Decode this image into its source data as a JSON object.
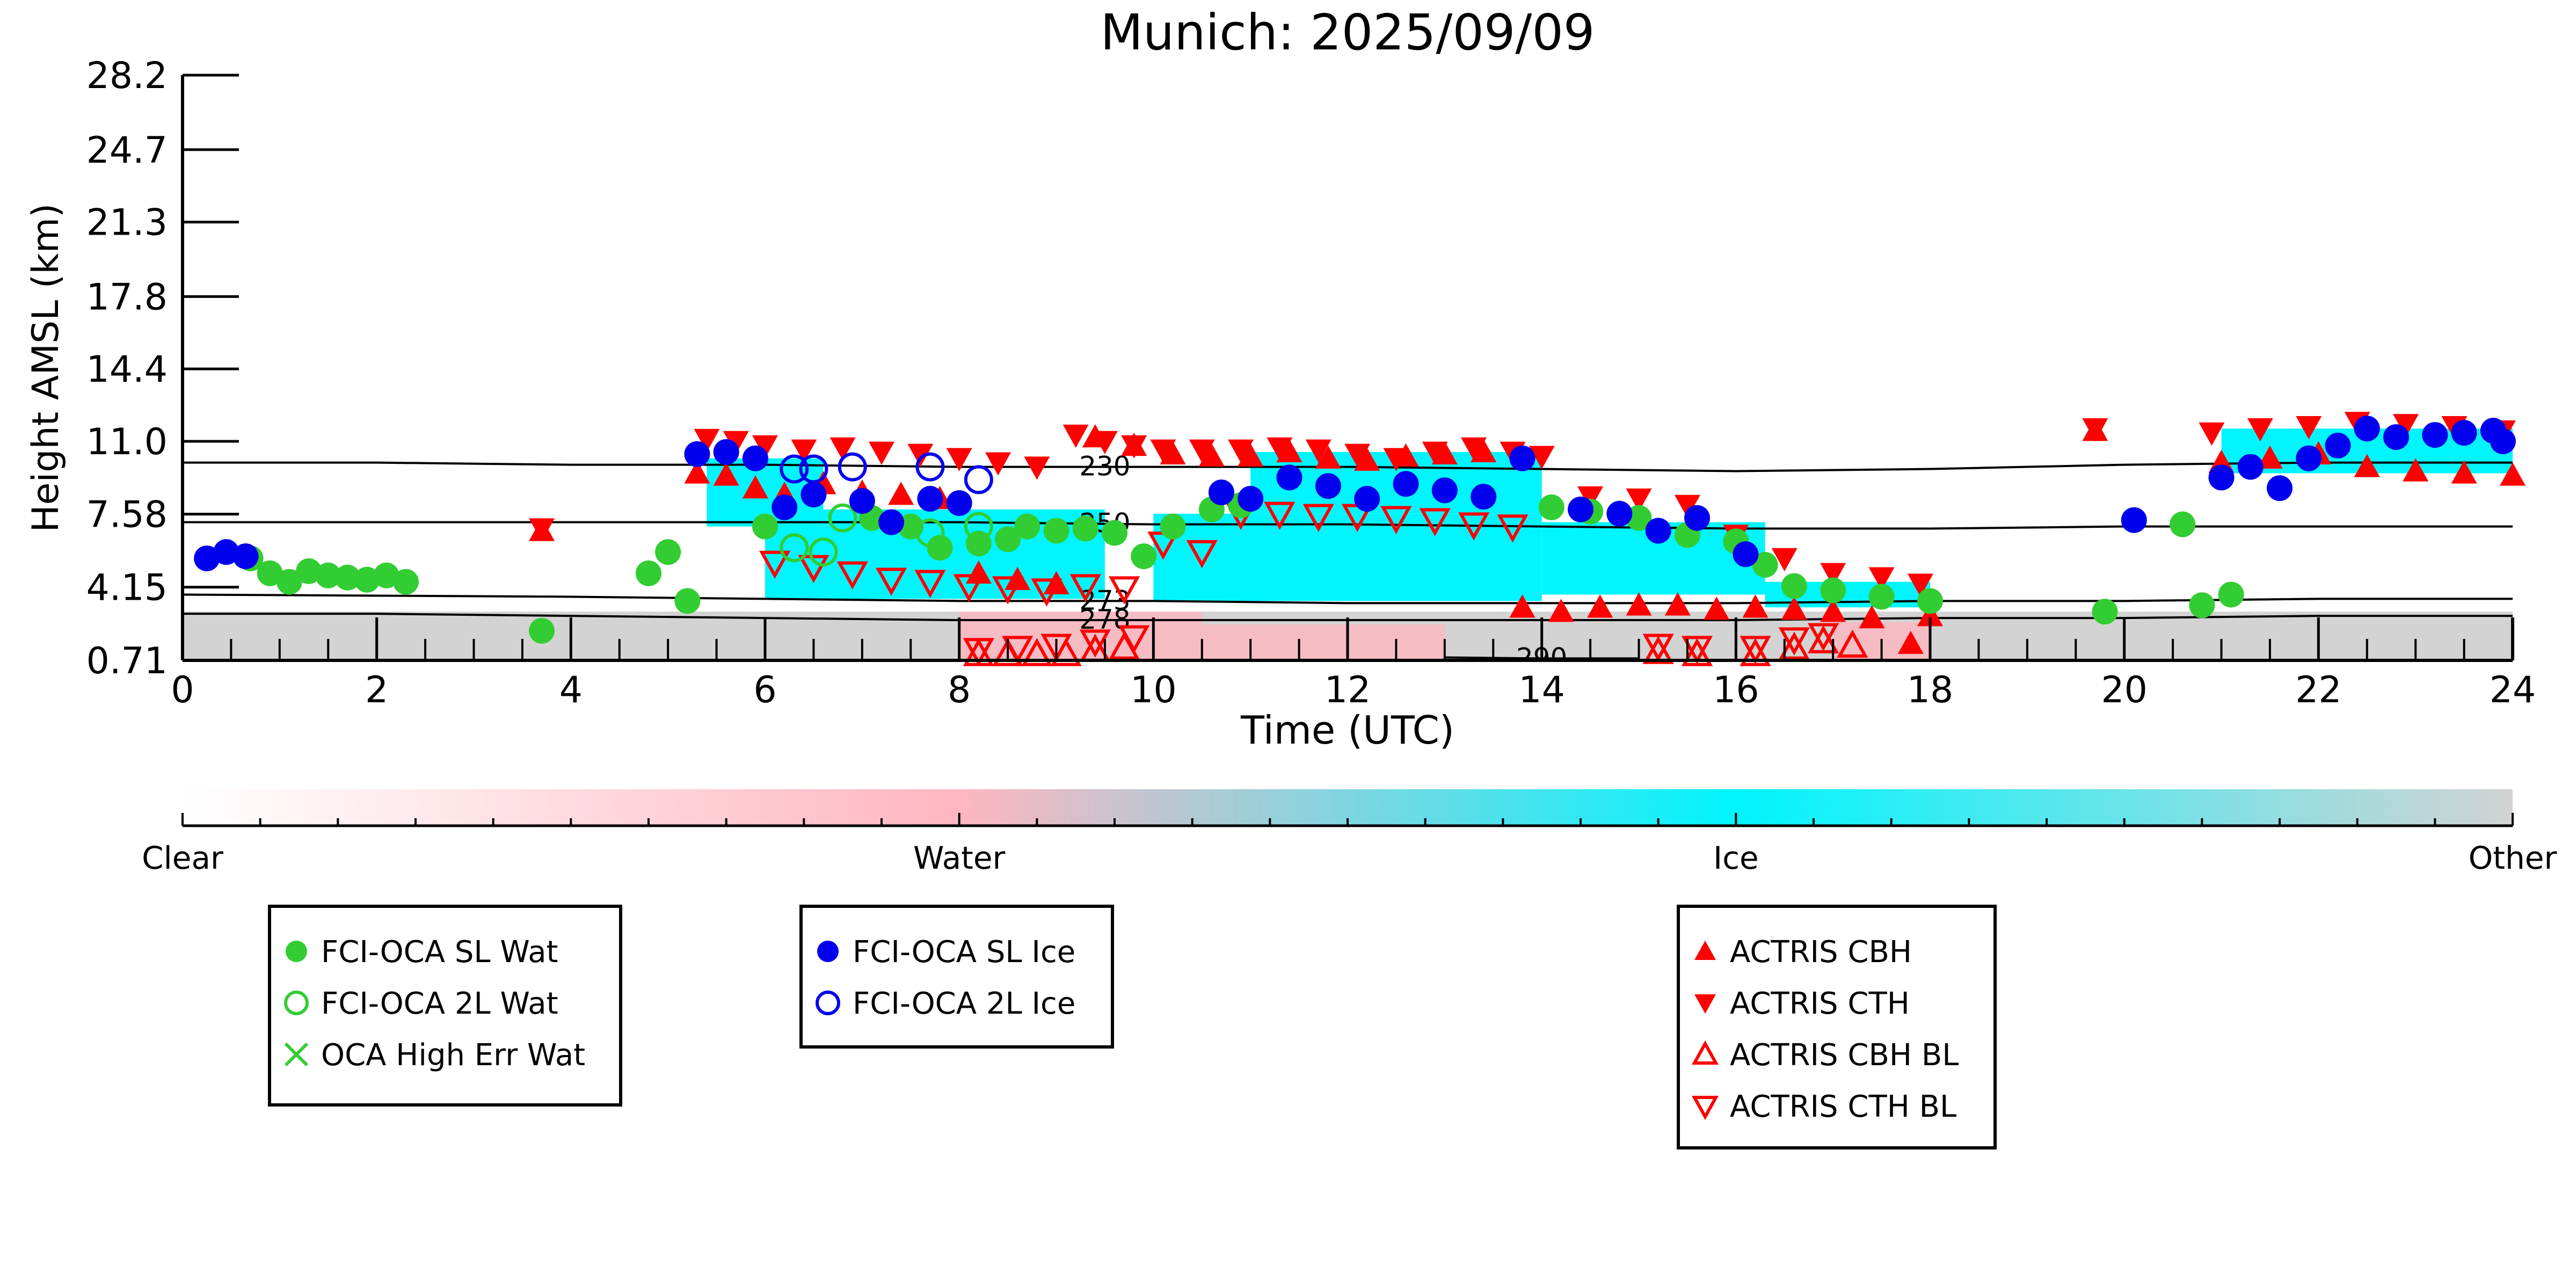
{
  "chart_data": {
    "type": "scatter",
    "title": "Munich: 2025/09/09",
    "xlabel": "Time (UTC)",
    "ylabel": "Height AMSL (km)",
    "xlim": [
      0,
      24
    ],
    "x_ticks": [
      "0",
      "2",
      "4",
      "6",
      "8",
      "10",
      "12",
      "14",
      "16",
      "18",
      "20",
      "22",
      "24"
    ],
    "y_ticks": [
      "0.71",
      "4.15",
      "7.58",
      "11.0",
      "14.4",
      "17.8",
      "21.3",
      "24.7",
      "28.2"
    ],
    "y_tick_values": [
      0.71,
      4.15,
      7.58,
      11.0,
      14.4,
      17.8,
      21.3,
      24.7,
      28.2
    ],
    "grid": false,
    "colorbar": {
      "labels": [
        "Clear",
        "Water",
        "Ice",
        "Other"
      ],
      "colors": [
        "#ffffff",
        "#ffb6c1",
        "#00f5ff",
        "#d3d3d3"
      ]
    },
    "isotherms": [
      {
        "label": "230",
        "x": [
          0,
          2,
          4,
          6,
          8,
          10,
          12,
          14,
          16,
          18,
          20,
          22,
          24
        ],
        "y": [
          10.0,
          10.0,
          9.9,
          9.9,
          9.8,
          9.8,
          9.8,
          9.7,
          9.6,
          9.7,
          9.9,
          10.0,
          10.0
        ]
      },
      {
        "label": "250",
        "x": [
          0,
          2,
          4,
          6,
          8,
          10,
          12,
          14,
          16,
          18,
          20,
          22,
          24
        ],
        "y": [
          7.2,
          7.2,
          7.2,
          7.2,
          7.2,
          7.1,
          7.1,
          7.0,
          6.9,
          6.9,
          7.0,
          7.0,
          7.0
        ]
      },
      {
        "label": "273",
        "x": [
          0,
          2,
          4,
          6,
          8,
          10,
          12,
          14,
          16,
          18,
          20,
          22,
          24
        ],
        "y": [
          3.8,
          3.75,
          3.7,
          3.6,
          3.5,
          3.5,
          3.4,
          3.4,
          3.4,
          3.5,
          3.5,
          3.6,
          3.6
        ]
      },
      {
        "label": "278",
        "x": [
          0,
          2,
          4,
          6,
          8,
          10,
          12,
          14,
          16,
          18,
          20,
          22,
          24
        ],
        "y": [
          2.9,
          2.9,
          2.8,
          2.7,
          2.6,
          2.6,
          2.6,
          2.6,
          2.6,
          2.7,
          2.7,
          2.8,
          2.8
        ]
      },
      {
        "label": "290",
        "x": [
          13,
          14,
          15
        ],
        "y": [
          0.85,
          0.8,
          0.8
        ]
      }
    ],
    "ice_regions": [
      {
        "x0": 5.4,
        "x1": 6.6,
        "y0": 7.0,
        "y1": 10.2
      },
      {
        "x0": 6.0,
        "x1": 9.5,
        "y0": 3.6,
        "y1": 7.8
      },
      {
        "x0": 10.0,
        "x1": 14.0,
        "y0": 3.5,
        "y1": 7.6
      },
      {
        "x0": 11.0,
        "x1": 14.0,
        "y0": 7.6,
        "y1": 10.5
      },
      {
        "x0": 14.0,
        "x1": 16.3,
        "y0": 3.8,
        "y1": 7.2
      },
      {
        "x0": 16.3,
        "x1": 18.0,
        "y0": 3.2,
        "y1": 4.4
      },
      {
        "x0": 21.0,
        "x1": 24.0,
        "y0": 9.5,
        "y1": 11.6
      }
    ],
    "water_regions": [
      {
        "x0": 8.0,
        "x1": 10.5,
        "y0": 0.71,
        "y1": 3.0
      },
      {
        "x0": 10.5,
        "x1": 13.0,
        "y0": 0.71,
        "y1": 2.4
      },
      {
        "x0": 17.0,
        "x1": 18.0,
        "y0": 0.71,
        "y1": 2.5
      }
    ],
    "other_band": {
      "y0": 0.71,
      "y1": 3.0
    },
    "series": [
      {
        "name": "FCI-OCA SL Wat",
        "marker": "circle-filled",
        "color": "#32cd32",
        "x": [
          0.7,
          0.9,
          1.1,
          1.3,
          1.5,
          1.7,
          1.9,
          2.1,
          2.3,
          3.7,
          4.8,
          5.0,
          5.2,
          6.0,
          7.1,
          7.5,
          7.8,
          8.2,
          8.5,
          8.7,
          9.0,
          9.3,
          9.6,
          9.9,
          10.2,
          10.6,
          10.9,
          14.1,
          14.5,
          15.0,
          15.5,
          16.0,
          16.3,
          16.6,
          17.0,
          17.5,
          18.0,
          19.8,
          20.6,
          20.8,
          21.1
        ],
        "y": [
          5.5,
          4.8,
          4.4,
          4.9,
          4.7,
          4.6,
          4.5,
          4.7,
          4.4,
          2.1,
          4.8,
          5.8,
          3.5,
          7.0,
          7.4,
          7.0,
          6.0,
          6.2,
          6.4,
          7.0,
          6.8,
          6.9,
          6.7,
          5.6,
          7.0,
          7.8,
          8.0,
          7.9,
          7.7,
          7.4,
          6.6,
          6.3,
          5.2,
          4.2,
          4.0,
          3.7,
          3.5,
          3.0,
          7.1,
          3.3,
          3.8
        ]
      },
      {
        "name": "FCI-OCA 2L Wat",
        "marker": "circle-open",
        "color": "#32cd32",
        "x": [
          6.3,
          6.6,
          6.8,
          7.7,
          8.2
        ],
        "y": [
          6.0,
          5.8,
          7.4,
          6.7,
          7.0
        ]
      },
      {
        "name": "OCA High Err Wat",
        "marker": "x",
        "color": "#32cd32",
        "x": [],
        "y": []
      },
      {
        "name": "FCI-OCA SL Ice",
        "marker": "circle-filled",
        "color": "#0000ee",
        "x": [
          0.25,
          0.45,
          0.65,
          5.3,
          5.6,
          5.9,
          6.2,
          6.5,
          7.0,
          7.3,
          7.7,
          8.0,
          10.7,
          11.0,
          11.4,
          11.8,
          12.2,
          12.6,
          13.0,
          13.4,
          13.8,
          14.4,
          14.8,
          15.2,
          15.6,
          16.1,
          20.1,
          21.0,
          21.3,
          21.6,
          21.9,
          22.2,
          22.5,
          22.8,
          23.2,
          23.5,
          23.8,
          23.9
        ],
        "y": [
          5.5,
          5.8,
          5.6,
          10.4,
          10.5,
          10.2,
          7.9,
          8.5,
          8.2,
          7.2,
          8.3,
          8.1,
          8.6,
          8.3,
          9.3,
          8.9,
          8.3,
          9.0,
          8.7,
          8.4,
          10.2,
          7.8,
          7.6,
          6.8,
          7.4,
          5.7,
          7.3,
          9.3,
          9.8,
          8.8,
          10.2,
          10.8,
          11.6,
          11.2,
          11.3,
          11.4,
          11.5,
          11.0
        ]
      },
      {
        "name": "FCI-OCA 2L Ice",
        "marker": "circle-open",
        "color": "#0000ee",
        "x": [
          6.3,
          6.5,
          6.9,
          7.7,
          8.2
        ],
        "y": [
          9.7,
          9.7,
          9.8,
          9.8,
          9.2
        ]
      },
      {
        "name": "ACTRIS CBH",
        "marker": "triangle-up-filled",
        "color": "#ff0000",
        "x": [
          3.7,
          5.3,
          5.6,
          5.9,
          6.2,
          6.6,
          7.0,
          7.4,
          7.8,
          8.2,
          8.6,
          9.0,
          9.4,
          9.8,
          10.2,
          10.6,
          11.0,
          11.4,
          11.8,
          12.2,
          12.6,
          13.0,
          13.4,
          13.8,
          14.2,
          14.6,
          15.0,
          15.4,
          15.8,
          16.2,
          16.6,
          17.0,
          17.4,
          17.8,
          18.0,
          19.7,
          21.0,
          21.5,
          22.0,
          22.5,
          23.0,
          23.5,
          24.0
        ],
        "y": [
          6.8,
          9.5,
          9.4,
          8.8,
          8.5,
          9.0,
          8.6,
          8.5,
          8.3,
          4.8,
          4.5,
          4.3,
          11.2,
          10.8,
          10.4,
          10.3,
          10.3,
          10.5,
          10.2,
          10.1,
          10.3,
          10.4,
          10.5,
          3.2,
          3.0,
          3.2,
          3.3,
          3.3,
          3.1,
          3.2,
          3.1,
          3.0,
          2.7,
          1.5,
          2.8,
          11.5,
          10.0,
          10.2,
          10.4,
          9.8,
          9.6,
          9.5,
          9.4
        ]
      },
      {
        "name": "ACTRIS CTH",
        "marker": "triangle-down-filled",
        "color": "#ff0000",
        "x": [
          3.7,
          5.4,
          5.7,
          6.0,
          6.4,
          6.8,
          7.2,
          7.6,
          8.0,
          8.4,
          8.8,
          9.2,
          9.5,
          9.8,
          10.1,
          10.5,
          10.9,
          11.3,
          11.7,
          12.1,
          12.5,
          12.9,
          13.3,
          13.7,
          14.0,
          14.5,
          15.0,
          15.5,
          16.0,
          16.5,
          17.0,
          17.5,
          17.9,
          19.7,
          20.9,
          21.4,
          21.9,
          22.4,
          22.9,
          23.4,
          23.9
        ],
        "y": [
          6.9,
          11.1,
          11.0,
          10.8,
          10.6,
          10.7,
          10.5,
          10.4,
          10.2,
          10.0,
          9.8,
          11.3,
          11.0,
          10.8,
          10.6,
          10.6,
          10.6,
          10.7,
          10.6,
          10.4,
          10.2,
          10.5,
          10.7,
          10.5,
          10.3,
          8.4,
          8.3,
          8.0,
          6.6,
          5.5,
          4.8,
          4.6,
          4.3,
          11.6,
          11.4,
          11.6,
          11.7,
          11.9,
          11.8,
          11.7,
          11.5
        ]
      },
      {
        "name": "ACTRIS CBH BL",
        "marker": "triangle-up-open",
        "color": "#ff0000",
        "x": [
          8.2,
          8.5,
          8.8,
          9.1,
          9.4,
          9.7,
          15.2,
          15.6,
          16.2,
          16.6,
          16.9,
          17.2
        ],
        "y": [
          1.0,
          1.0,
          1.0,
          1.0,
          1.2,
          1.3,
          1.1,
          1.0,
          1.0,
          1.3,
          1.6,
          1.4
        ]
      },
      {
        "name": "ACTRIS CTH BL",
        "marker": "triangle-down-open",
        "color": "#ff0000",
        "x": [
          6.1,
          6.5,
          6.9,
          7.3,
          7.7,
          8.1,
          8.5,
          8.9,
          9.3,
          9.7,
          10.1,
          10.5,
          10.9,
          11.3,
          11.7,
          12.1,
          12.5,
          12.9,
          13.3,
          13.7,
          8.2,
          8.6,
          9.0,
          9.4,
          9.8,
          15.2,
          15.6,
          16.2,
          16.6,
          16.9
        ],
        "y": [
          5.3,
          5.1,
          4.8,
          4.5,
          4.4,
          4.2,
          4.1,
          4.0,
          4.2,
          4.1,
          6.2,
          5.8,
          7.6,
          7.6,
          7.5,
          7.5,
          7.4,
          7.3,
          7.1,
          7.0,
          1.2,
          1.3,
          1.4,
          1.6,
          1.8,
          1.4,
          1.3,
          1.3,
          1.7,
          1.9
        ]
      }
    ]
  },
  "legends": [
    {
      "entries": [
        "FCI-OCA SL Wat",
        "FCI-OCA 2L Wat",
        "OCA High Err Wat"
      ]
    },
    {
      "entries": [
        "FCI-OCA SL Ice",
        "FCI-OCA 2L Ice"
      ]
    },
    {
      "entries": [
        "ACTRIS CBH",
        "ACTRIS CTH",
        "ACTRIS CBH BL",
        "ACTRIS CTH BL"
      ]
    }
  ]
}
